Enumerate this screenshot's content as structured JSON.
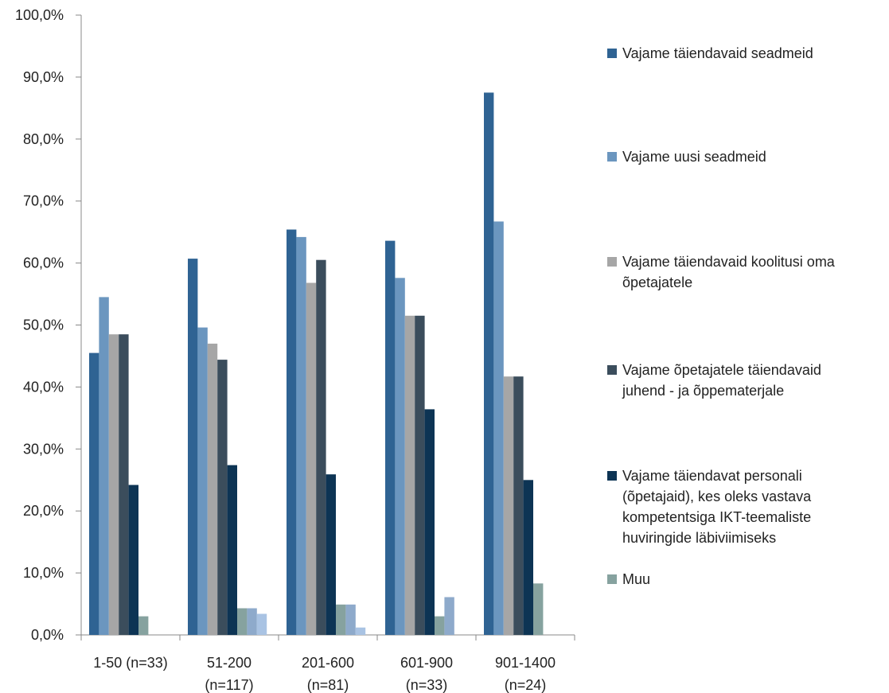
{
  "chart_data": {
    "type": "bar",
    "categories": [
      [
        "1-50 (n=33)"
      ],
      [
        "51-200",
        "(n=117)"
      ],
      [
        "201-600",
        "(n=81)"
      ],
      [
        "601-900",
        "(n=33)"
      ],
      [
        "901-1400",
        "(n=24)"
      ]
    ],
    "series": [
      {
        "name": "Vajame täiendavaid seadmeid",
        "legend_lines": [
          "Vajame täiendavaid seadmeid"
        ],
        "color": "#2f6393",
        "values": [
          45.5,
          60.7,
          65.4,
          63.6,
          87.5
        ]
      },
      {
        "name": "Vajame uusi seadmeid",
        "legend_lines": [
          "Vajame uusi seadmeid"
        ],
        "color": "#6b96bf",
        "values": [
          54.5,
          49.6,
          64.2,
          57.6,
          66.7
        ]
      },
      {
        "name": "Vajame täiendavaid koolitusi oma õpetajatele",
        "legend_lines": [
          "Vajame täiendavaid koolitusi oma",
          "õpetajatele"
        ],
        "color": "#a6a6a6",
        "values": [
          48.5,
          47.0,
          56.8,
          51.5,
          41.7
        ]
      },
      {
        "name": "Vajame õpetajatele täiendavaid juhend - ja õppematerjale",
        "legend_lines": [
          "Vajame õpetajatele täiendavaid",
          "juhend - ja õppematerjale"
        ],
        "color": "#3b4d5c",
        "values": [
          48.5,
          44.4,
          60.5,
          51.5,
          41.7
        ]
      },
      {
        "name": "Vajame täiendavat personali (õpetajaid), kes oleks vastava kompetentsiga IKT-teemaliste huviringide läbiviimiseks",
        "legend_lines": [
          "Vajame täiendavat personali",
          "(õpetajaid), kes oleks vastava",
          "kompetentsiga IKT-teemaliste",
          "huviringide läbiviimiseks"
        ],
        "color": "#0d3454",
        "values": [
          24.2,
          27.4,
          25.9,
          36.4,
          25.0
        ]
      },
      {
        "name": "Muu",
        "legend_lines": [
          "Muu"
        ],
        "color": "#86a29f",
        "values": [
          3.0,
          4.3,
          4.9,
          3.0,
          8.3
        ]
      },
      {
        "name": "",
        "legend_lines": [],
        "color": "#8eaacb",
        "values": [
          0,
          4.3,
          4.9,
          6.1,
          0
        ]
      },
      {
        "name": "",
        "legend_lines": [],
        "color": "#a9c3e3",
        "values": [
          0,
          3.4,
          1.2,
          0,
          0
        ]
      }
    ],
    "yticks": [
      "0,0%",
      "10,0%",
      "20,0%",
      "30,0%",
      "40,0%",
      "50,0%",
      "60,0%",
      "70,0%",
      "80,0%",
      "90,0%",
      "100,0%"
    ],
    "ylim": [
      0,
      100
    ],
    "grid": false,
    "legend_position": "right",
    "title": "",
    "xlabel": "",
    "ylabel": ""
  }
}
